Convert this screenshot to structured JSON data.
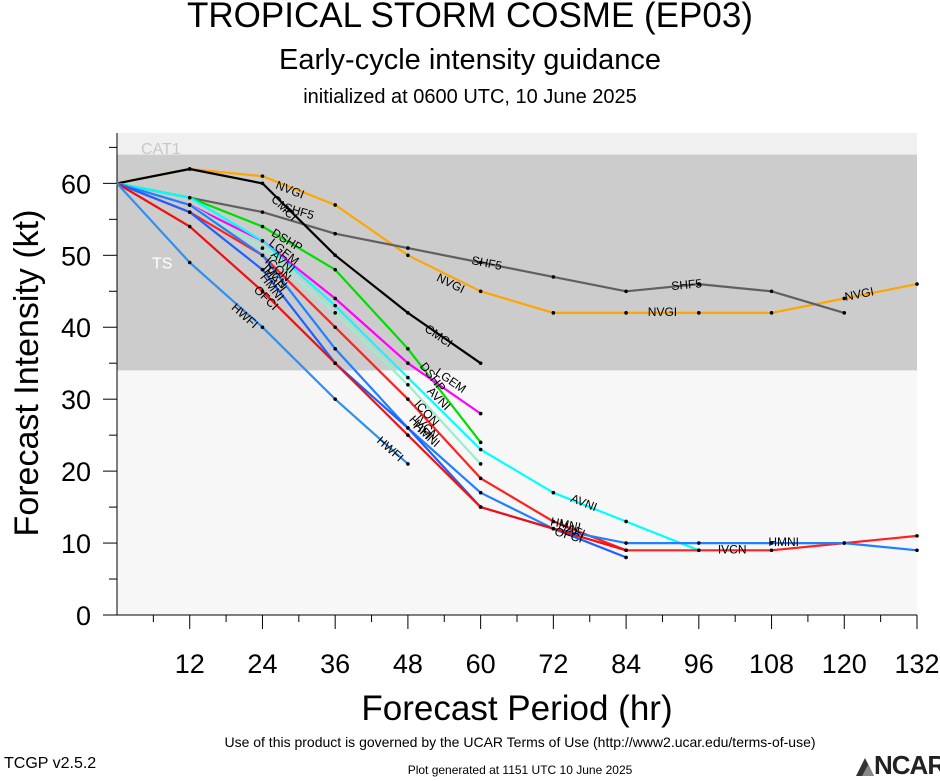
{
  "header": {
    "title": "TROPICAL STORM COSME (EP03)",
    "subtitle": "Early-cycle intensity guidance",
    "init": "initialized at 0600 UTC, 10 June 2025"
  },
  "footer": {
    "terms": "Use of this product is governed by the UCAR Terms of Use (http://www2.ucar.edu/terms-of-use)",
    "version": "TCGP v2.5.2",
    "generated": "Plot generated at 1151 UTC   10 June 2025",
    "logo_text": "NCAR"
  },
  "chart_data": {
    "type": "line",
    "xlabel": "Forecast Period (hr)",
    "ylabel": "Forecast Intensity (kt)",
    "xlim": [
      0,
      132
    ],
    "ylim": [
      0,
      67
    ],
    "xticks": [
      12,
      24,
      36,
      48,
      60,
      72,
      84,
      96,
      108,
      120,
      132
    ],
    "yticks": [
      0,
      10,
      20,
      30,
      40,
      50,
      60
    ],
    "bands": [
      {
        "label": "CAT1",
        "from": 64,
        "to": 67,
        "color": "#f0f0f0"
      },
      {
        "label": "TS",
        "from": 34,
        "to": 64,
        "color": "#cccccc"
      }
    ],
    "series": [
      {
        "name": "NVGI",
        "color": "#ffa500",
        "x": [
          0,
          12,
          24,
          36,
          48,
          60,
          72,
          84,
          96,
          108,
          120,
          132
        ],
        "y": [
          60,
          62,
          61,
          57,
          50,
          45,
          42,
          42,
          42,
          42,
          44,
          46
        ],
        "labels": [
          {
            "x": 28.5,
            "y": 59
          },
          {
            "x": 55,
            "y": 46
          },
          {
            "x": 90,
            "y": 42
          },
          {
            "x": 122.5,
            "y": 44.5
          }
        ]
      },
      {
        "name": "SHF5",
        "color": "#606060",
        "x": [
          0,
          12,
          24,
          36,
          48,
          60,
          72,
          84,
          96,
          108,
          120
        ],
        "y": [
          60,
          58,
          56,
          53,
          51,
          49,
          47,
          45,
          46,
          45,
          42
        ],
        "labels": [
          {
            "x": 30,
            "y": 56
          },
          {
            "x": 61,
            "y": 48.8
          },
          {
            "x": 94,
            "y": 45.8
          }
        ]
      },
      {
        "name": "CMCI",
        "color": "#000000",
        "x": [
          0,
          12,
          24,
          36,
          48,
          60
        ],
        "y": [
          60,
          62,
          60,
          50,
          42,
          35
        ],
        "labels": [
          {
            "x": 27.5,
            "y": 56.5
          },
          {
            "x": 53,
            "y": 38.7
          }
        ]
      },
      {
        "name": "DSHP",
        "color": "#00dd00",
        "x": [
          0,
          12,
          24,
          36,
          48,
          60
        ],
        "y": [
          60,
          58,
          54,
          48,
          37,
          24
        ],
        "labels": [
          {
            "x": 28,
            "y": 52
          },
          {
            "x": 52,
            "y": 33
          }
        ]
      },
      {
        "name": "LGEM",
        "color": "#ff00ff",
        "x": [
          0,
          12,
          24,
          36,
          48,
          60
        ],
        "y": [
          60,
          57,
          52,
          44,
          35,
          28
        ],
        "labels": [
          {
            "x": 27.5,
            "y": 50.4
          },
          {
            "x": 55,
            "y": 32.5
          }
        ]
      },
      {
        "name": "AVNI",
        "color": "#00ffff",
        "x": [
          0,
          12,
          24,
          36,
          48,
          60,
          72,
          84,
          96
        ],
        "y": [
          60,
          58,
          52,
          43,
          33,
          23,
          17,
          13,
          9
        ],
        "labels": [
          {
            "x": 27.3,
            "y": 49
          },
          {
            "x": 53,
            "y": 30
          },
          {
            "x": 77,
            "y": 15.5
          }
        ]
      },
      {
        "name": "ICON",
        "color": "#99eecc",
        "x": [
          0,
          12,
          24,
          36,
          48,
          60
        ],
        "y": [
          60,
          57,
          51,
          42,
          32,
          21
        ],
        "labels": [
          {
            "x": 26.5,
            "y": 48
          },
          {
            "x": 51,
            "y": 28
          }
        ]
      },
      {
        "name": "IVCN",
        "color": "#ff2020",
        "x": [
          0,
          12,
          24,
          36,
          48,
          60,
          72,
          84,
          96,
          108,
          120,
          132
        ],
        "y": [
          60,
          56,
          50,
          40,
          30,
          19,
          13,
          9,
          9,
          9,
          10,
          11
        ],
        "labels": [
          {
            "x": 26,
            "y": 47
          },
          {
            "x": 51,
            "y": 26
          },
          {
            "x": 101.5,
            "y": 9
          }
        ]
      },
      {
        "name": "HMNI",
        "color": "#2080ff",
        "x": [
          0,
          12,
          24,
          36,
          48,
          60,
          72,
          84,
          96,
          108,
          120,
          132
        ],
        "y": [
          60,
          57,
          50,
          37,
          26,
          17,
          12,
          10,
          10,
          10,
          10,
          9
        ],
        "labels": [
          {
            "x": 25.5,
            "y": 45.5
          },
          {
            "x": 51,
            "y": 25
          },
          {
            "x": 74,
            "y": 12.5
          },
          {
            "x": 110,
            "y": 10
          }
        ]
      },
      {
        "name": "HAFI",
        "color": "#2060ff",
        "x": [
          0,
          12,
          24,
          36,
          48,
          60,
          72,
          84
        ],
        "y": [
          60,
          56,
          48,
          35,
          26,
          15,
          12,
          8
        ],
        "labels": [
          {
            "x": 26,
            "y": 46.5
          },
          {
            "x": 50,
            "y": 26
          },
          {
            "x": 75,
            "y": 11.8
          }
        ]
      },
      {
        "name": "OFCI",
        "color": "#ee1111",
        "x": [
          0,
          12,
          24,
          36,
          48,
          60,
          72,
          84
        ],
        "y": [
          60,
          54,
          45,
          35,
          25,
          15,
          12,
          9
        ],
        "labels": [
          {
            "x": 24.5,
            "y": 44
          },
          {
            "x": 74.5,
            "y": 11
          }
        ]
      },
      {
        "name": "HWFI",
        "color": "#3090ee",
        "x": [
          0,
          12,
          24,
          36,
          48
        ],
        "y": [
          60,
          49,
          40,
          30,
          21
        ],
        "labels": [
          {
            "x": 21,
            "y": 41.5
          },
          {
            "x": 45,
            "y": 23
          }
        ]
      }
    ]
  }
}
